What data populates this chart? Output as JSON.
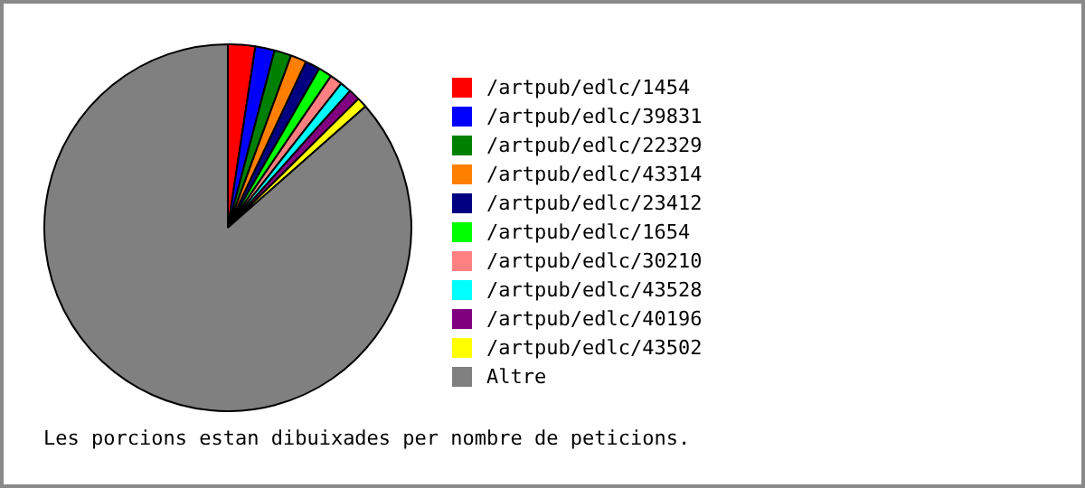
{
  "chart_data": {
    "type": "pie",
    "categories": [
      "/artpub/edlc/1454",
      "/artpub/edlc/39831",
      "/artpub/edlc/22329",
      "/artpub/edlc/43314",
      "/artpub/edlc/23412",
      "/artpub/edlc/1654",
      "/artpub/edlc/30210",
      "/artpub/edlc/43528",
      "/artpub/edlc/40196",
      "/artpub/edlc/43502",
      "Altre"
    ],
    "values": [
      2.4,
      1.7,
      1.5,
      1.4,
      1.3,
      1.2,
      1.1,
      1.0,
      1.0,
      0.9,
      86.5
    ],
    "colors": [
      "#ff0000",
      "#0000ff",
      "#008000",
      "#ff8000",
      "#000080",
      "#00ff00",
      "#ff8080",
      "#00ffff",
      "#800080",
      "#ffff00",
      "#808080"
    ],
    "legend": "right",
    "annotations": [
      "Les porcions estan dibuixades per nombre de peticions."
    ]
  }
}
